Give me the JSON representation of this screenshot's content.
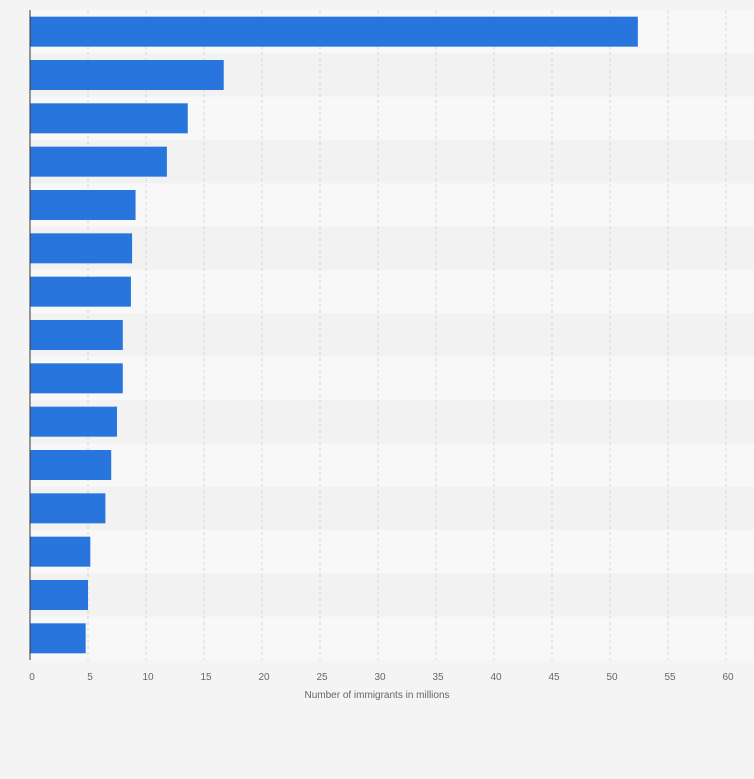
{
  "chart_data": {
    "type": "bar",
    "orientation": "horizontal",
    "title": "",
    "xlabel": "Number of immigrants in millions",
    "ylabel": "",
    "categories": [
      "",
      "",
      "",
      "",
      "",
      "",
      "",
      "",
      "",
      "",
      "",
      "",
      "",
      "",
      ""
    ],
    "values": [
      52.4,
      16.7,
      13.6,
      11.8,
      9.1,
      8.8,
      8.7,
      8.0,
      8.0,
      7.5,
      7.0,
      6.5,
      5.2,
      5.0,
      4.8
    ],
    "xlim": [
      0,
      60
    ],
    "xticks": [
      "0",
      "5",
      "10",
      "15",
      "20",
      "25",
      "30",
      "35",
      "40",
      "45",
      "50",
      "55",
      "60"
    ],
    "grid": true,
    "legend": "none",
    "colors": {
      "bar": "#2876dd",
      "band_light": "#f8f8f8",
      "band_dark": "#f2f2f2",
      "grid": "#d4d4d4",
      "axis": "#333333",
      "text": "#666666"
    }
  }
}
